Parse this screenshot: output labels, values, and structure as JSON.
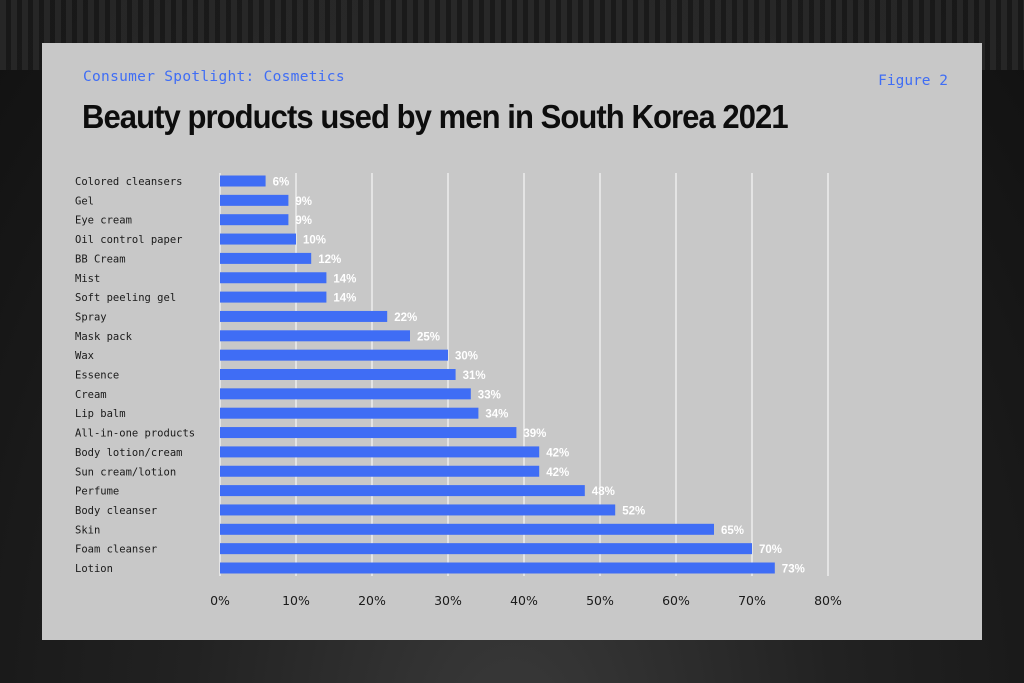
{
  "header": {
    "eyebrow": "Consumer Spotlight: Cosmetics",
    "figure": "Figure 2",
    "title": "Beauty products used by men in South Korea 2021"
  },
  "colors": {
    "bar": "#3f6df5",
    "accent_text": "#3f6df5",
    "card": "#c8c8c8",
    "grid": "#ffffff"
  },
  "chart_data": {
    "type": "bar",
    "orientation": "horizontal",
    "title": "Beauty products used by men in South Korea 2021",
    "xlabel": "",
    "ylabel": "",
    "xlim": [
      0,
      80
    ],
    "xticks": [
      "0%",
      "10%",
      "20%",
      "30%",
      "40%",
      "50%",
      "60%",
      "70%",
      "80%"
    ],
    "grid": true,
    "categories": [
      "Colored cleansers",
      "Gel",
      "Eye cream",
      "Oil control paper",
      "BB Cream",
      "Mist",
      "Soft peeling gel",
      "Spray",
      "Mask pack",
      "Wax",
      "Essence",
      "Cream",
      "Lip balm",
      "All-in-one products",
      "Body lotion/cream",
      "Sun cream/lotion",
      "Perfume",
      "Body cleanser",
      "Skin",
      "Foam cleanser",
      "Lotion"
    ],
    "values": [
      6,
      9,
      9,
      10,
      12,
      14,
      14,
      22,
      25,
      30,
      31,
      33,
      34,
      39,
      42,
      42,
      48,
      52,
      65,
      70,
      73
    ],
    "value_labels": [
      "6%",
      "9%",
      "9%",
      "10%",
      "12%",
      "14%",
      "14%",
      "22%",
      "25%",
      "30%",
      "31%",
      "33%",
      "34%",
      "39%",
      "42%",
      "42%",
      "48%",
      "52%",
      "65%",
      "70%",
      "73%"
    ]
  }
}
